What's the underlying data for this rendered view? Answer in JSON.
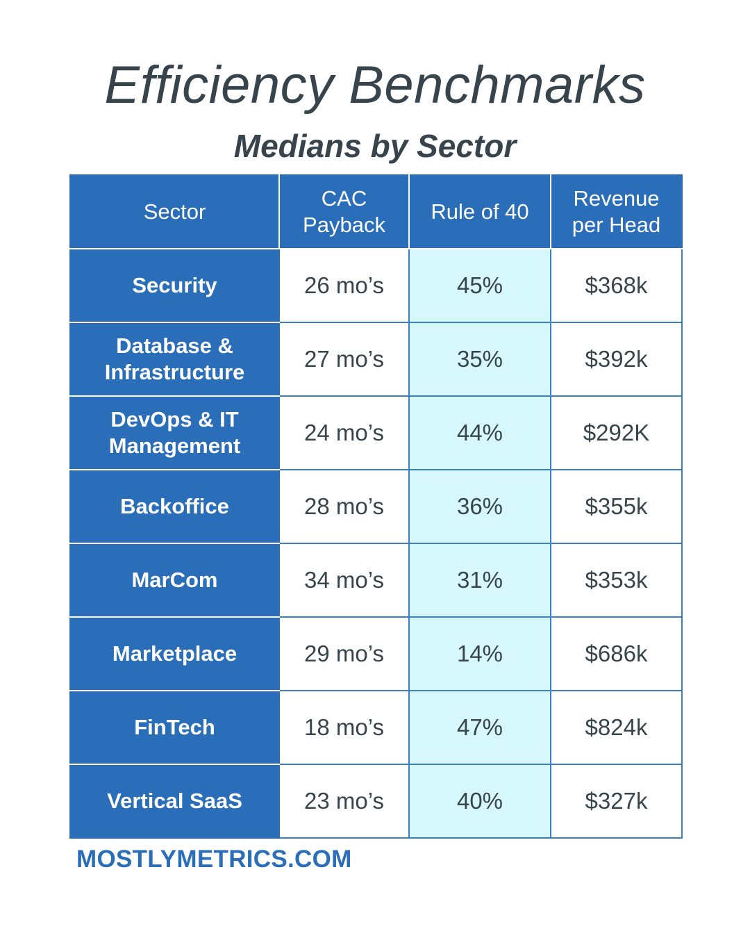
{
  "title": "Efficiency Benchmarks",
  "subtitle": "Medians by Sector",
  "footer": "MOSTLYMETRICS.COM",
  "colors": {
    "header_blue": "#2a6db8",
    "highlight_column": "#d6f7fb",
    "text_dark": "#38444b"
  },
  "chart_data": {
    "type": "table",
    "title": "Efficiency Benchmarks",
    "subtitle": "Medians by Sector",
    "columns": [
      "Sector",
      "CAC Payback",
      "Rule of 40",
      "Revenue per Head"
    ],
    "header_lines": [
      [
        "Sector"
      ],
      [
        "CAC",
        "Payback"
      ],
      [
        "Rule of 40"
      ],
      [
        "Revenue",
        "per Head"
      ]
    ],
    "rows": [
      {
        "sector_lines": [
          "Security"
        ],
        "cac": "26 mo’s",
        "rule": "45%",
        "rev": "$368k"
      },
      {
        "sector_lines": [
          "Database &",
          "Infrastructure"
        ],
        "cac": "27 mo’s",
        "rule": "35%",
        "rev": "$392k"
      },
      {
        "sector_lines": [
          "DevOps & IT",
          "Management"
        ],
        "cac": "24 mo’s",
        "rule": "44%",
        "rev": "$292K"
      },
      {
        "sector_lines": [
          "Backoffice"
        ],
        "cac": "28 mo’s",
        "rule": "36%",
        "rev": "$355k"
      },
      {
        "sector_lines": [
          "MarCom"
        ],
        "cac": "34 mo’s",
        "rule": "31%",
        "rev": "$353k"
      },
      {
        "sector_lines": [
          "Marketplace"
        ],
        "cac": "29 mo’s",
        "rule": "14%",
        "rev": "$686k"
      },
      {
        "sector_lines": [
          "FinTech"
        ],
        "cac": "18 mo’s",
        "rule": "47%",
        "rev": "$824k"
      },
      {
        "sector_lines": [
          "Vertical SaaS"
        ],
        "cac": "23 mo’s",
        "rule": "40%",
        "rev": "$327k"
      }
    ]
  }
}
